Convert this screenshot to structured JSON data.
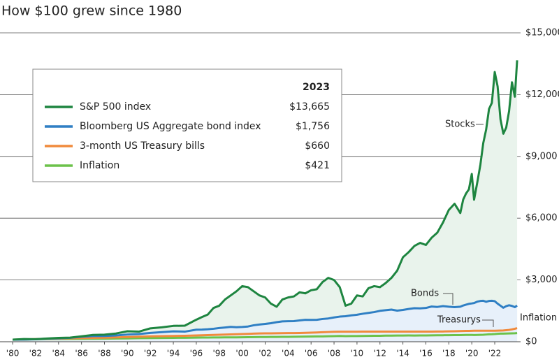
{
  "chart_data": {
    "type": "line",
    "title": "How $100 grew since 1980",
    "x": [
      1980,
      1981,
      1982,
      1983,
      1984,
      1985,
      1986,
      1987,
      1988,
      1989,
      1990,
      1991,
      1992,
      1993,
      1994,
      1995,
      1996,
      1996.5,
      1997,
      1997.5,
      1998,
      1998.5,
      1999,
      1999.5,
      2000,
      2000.5,
      2001,
      2001.5,
      2002,
      2002.5,
      2003,
      2003.5,
      2004,
      2004.5,
      2005,
      2005.5,
      2006,
      2006.5,
      2007,
      2007.5,
      2008,
      2008.5,
      2009,
      2009.5,
      2010,
      2010.5,
      2011,
      2011.5,
      2012,
      2012.5,
      2013,
      2013.5,
      2014,
      2014.5,
      2015,
      2015.5,
      2016,
      2016.5,
      2017,
      2017.5,
      2018,
      2018.5,
      2019,
      2019.25,
      2019.5,
      2019.75,
      2020,
      2020.2,
      2020.5,
      2020.75,
      2021,
      2021.25,
      2021.5,
      2021.75,
      2022,
      2022.25,
      2022.5,
      2022.75,
      2023,
      2023.25,
      2023.5,
      2023.75,
      2023.95
    ],
    "series": [
      {
        "name": "S&P 500 index",
        "color": "#1e8540",
        "area_color": "#e9f3ec",
        "legend_value": "$13,665",
        "annotation": "Stocks",
        "values": [
          100,
          130,
          125,
          155,
          185,
          200,
          265,
          330,
          345,
          400,
          510,
          490,
          650,
          700,
          770,
          780,
          1070,
          1200,
          1320,
          1640,
          1750,
          2050,
          2250,
          2450,
          2700,
          2650,
          2450,
          2250,
          2150,
          1850,
          1700,
          2050,
          2150,
          2200,
          2400,
          2350,
          2500,
          2550,
          2900,
          3100,
          3000,
          2650,
          1750,
          1850,
          2250,
          2200,
          2600,
          2700,
          2650,
          2850,
          3100,
          3450,
          4100,
          4350,
          4650,
          4800,
          4700,
          5050,
          5300,
          5800,
          6400,
          6700,
          6250,
          6900,
          7200,
          7400,
          8150,
          6900,
          7800,
          8600,
          9650,
          10300,
          11300,
          11600,
          13100,
          12400,
          10800,
          10100,
          10400,
          11200,
          12600,
          11900,
          13665
        ]
      },
      {
        "name": "Bloomberg US Aggregate bond index",
        "color": "#2f7fc4",
        "area_color": "#e7f0fa",
        "legend_value": "$1,756",
        "annotation": "Bonds",
        "values": [
          100,
          108,
          120,
          150,
          165,
          190,
          240,
          275,
          282,
          305,
          350,
          375,
          430,
          465,
          505,
          490,
          585,
          590,
          605,
          630,
          665,
          690,
          720,
          705,
          715,
          740,
          800,
          835,
          865,
          900,
          950,
          990,
          995,
          1000,
          1035,
          1065,
          1060,
          1065,
          1105,
          1130,
          1180,
          1220,
          1240,
          1280,
          1310,
          1360,
          1400,
          1440,
          1500,
          1530,
          1560,
          1510,
          1545,
          1590,
          1630,
          1620,
          1640,
          1710,
          1690,
          1730,
          1700,
          1680,
          1700,
          1760,
          1800,
          1840,
          1860,
          1880,
          1950,
          1980,
          1990,
          1940,
          1980,
          1990,
          1970,
          1850,
          1750,
          1650,
          1730,
          1770,
          1740,
          1680,
          1756
        ]
      },
      {
        "name": "3-month US Treasury bills",
        "color": "#f08a3c",
        "legend_value": "$660",
        "annotation": "Treasurys",
        "values": [
          100,
          112,
          126,
          138,
          150,
          165,
          177,
          186,
          197,
          210,
          228,
          247,
          261,
          271,
          279,
          290,
          306,
          314,
          322,
          330,
          339,
          348,
          356,
          364,
          373,
          383,
          394,
          402,
          406,
          409,
          413,
          416,
          418,
          421,
          425,
          432,
          441,
          451,
          462,
          473,
          482,
          487,
          488,
          489,
          489,
          490,
          490,
          490,
          490,
          490,
          491,
          491,
          491,
          491,
          491,
          491,
          492,
          493,
          495,
          498,
          503,
          510,
          518,
          522,
          525,
          528,
          531,
          533,
          533,
          534,
          534,
          534,
          534,
          534,
          535,
          537,
          541,
          548,
          560,
          575,
          600,
          630,
          660
        ]
      },
      {
        "name": "Inflation",
        "color": "#6cc24a",
        "legend_value": "$421",
        "annotation": "Inflation",
        "values": [
          100,
          112,
          122,
          126,
          131,
          136,
          141,
          143,
          150,
          156,
          163,
          173,
          178,
          183,
          188,
          193,
          198,
          202,
          205,
          207,
          208,
          210,
          211,
          214,
          218,
          222,
          225,
          229,
          228,
          232,
          234,
          237,
          239,
          243,
          246,
          251,
          254,
          260,
          260,
          267,
          271,
          281,
          270,
          275,
          277,
          280,
          283,
          290,
          290,
          295,
          297,
          300,
          301,
          305,
          303,
          305,
          305,
          310,
          312,
          316,
          317,
          323,
          322,
          326,
          329,
          329,
          330,
          325,
          330,
          334,
          338,
          350,
          360,
          364,
          372,
          385,
          395,
          394,
          398,
          405,
          409,
          413,
          421
        ]
      }
    ],
    "legend_header": "2023",
    "xlim": [
      1978.9,
      2024.25
    ],
    "ylim": [
      0,
      15000
    ],
    "xticks": [
      {
        "value": 1980,
        "label": "'80"
      },
      {
        "value": 1982,
        "label": "'82"
      },
      {
        "value": 1984,
        "label": "'84"
      },
      {
        "value": 1986,
        "label": "'86"
      },
      {
        "value": 1988,
        "label": "'88"
      },
      {
        "value": 1990,
        "label": "'90"
      },
      {
        "value": 1992,
        "label": "'92"
      },
      {
        "value": 1994,
        "label": "'94"
      },
      {
        "value": 1996,
        "label": "'96"
      },
      {
        "value": 1998,
        "label": "'98"
      },
      {
        "value": 2000,
        "label": "'00"
      },
      {
        "value": 2002,
        "label": "'02"
      },
      {
        "value": 2004,
        "label": "'04"
      },
      {
        "value": 2006,
        "label": "'06"
      },
      {
        "value": 2008,
        "label": "'08"
      },
      {
        "value": 2010,
        "label": "'10"
      },
      {
        "value": 2012,
        "label": "'12"
      },
      {
        "value": 2014,
        "label": "'14"
      },
      {
        "value": 2016,
        "label": "'16"
      },
      {
        "value": 2018,
        "label": "'18"
      },
      {
        "value": 2020,
        "label": "'20"
      },
      {
        "value": 2022,
        "label": "'22"
      }
    ],
    "yticks": [
      {
        "value": 0,
        "label": "$0"
      },
      {
        "value": 3000,
        "label": "$3,000"
      },
      {
        "value": 6000,
        "label": "$6,000"
      },
      {
        "value": 9000,
        "label": "$9,000"
      },
      {
        "value": 12000,
        "label": "$12,000"
      },
      {
        "value": 15000,
        "label": "$15,000"
      }
    ],
    "grid": true
  }
}
